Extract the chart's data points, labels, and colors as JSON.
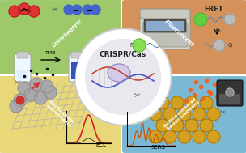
{
  "title": "CRISPR/Cas",
  "bg_color": "#f5f5f5",
  "panel_colors": {
    "top_left": "#9dc96a",
    "top_right": "#d4925a",
    "bottom_left": "#e8d87a",
    "bottom_right": "#7ab8d4"
  },
  "labels": {
    "colorimetric": "Colorimetric",
    "fluorescent": "Fluorescent",
    "ecl": "Electro-chemi-\nluminescence",
    "sers": "Surface-enhanced\nRaman scattering"
  },
  "annotations": {
    "tmb": "TMB",
    "fret": "FRET",
    "ecl_label": "ECL",
    "sers_label": "SERS",
    "f_label": "F",
    "q_label": "Q"
  },
  "figsize": [
    3.04,
    1.89
  ],
  "dpi": 100
}
